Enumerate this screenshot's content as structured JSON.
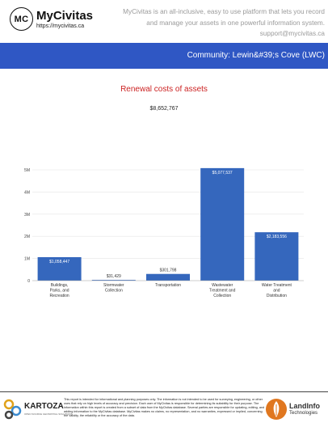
{
  "header": {
    "logo_text": "MC",
    "brand_name": "MyCivitas",
    "brand_url": "https://mycivitas.ca",
    "tagline": "MyCivitas is an all-inclusive, easy to use platform that lets you record and manage your assets in one powerful information system.",
    "support_email": "support@mycivitas.ca"
  },
  "banner": {
    "community": "Community: Lewin&#39;s Cove (LWC)"
  },
  "chart_data": {
    "type": "bar",
    "title": "Renewal costs of assets",
    "subtitle": "$8,652,767",
    "categories": [
      [
        "Buildings,",
        "Parks, and",
        "Recreation"
      ],
      [
        "Stormwater",
        "Collection"
      ],
      [
        "Transportation"
      ],
      [
        "Wastewater",
        "Treatment and",
        "Collection"
      ],
      [
        "Water Treatment",
        "and",
        "Distribution"
      ]
    ],
    "values": [
      1058447,
      31429,
      301798,
      5077537,
      2183556
    ],
    "value_labels": [
      "$1,058,447",
      "$31,429",
      "$301,798",
      "$5,077,537",
      "$2,183,556"
    ],
    "yticks": [
      0,
      1000000,
      2000000,
      3000000,
      4000000,
      5000000
    ],
    "ytick_labels": [
      "0",
      "1M",
      "2M",
      "3M",
      "4M",
      "5M"
    ],
    "ylim": [
      0,
      5000000
    ],
    "grid": true,
    "bar_color": "#3567bd",
    "label_color_inside": "#ffffff",
    "label_color_outside": "#333333"
  },
  "footer": {
    "kartoza_name": "KARTOZA",
    "kartoza_sub": "OPEN SOURCE GEOSPATIAL SOLUTIONS",
    "disclaimer": "This report is intended for informational and planning purposes only. The information is not intended to be used for surveying, engineering, or other uses that rely on high levels of accuracy and precision. Each user of MyCivitas is responsible for determining its suitability for their purpose. The information within this report is created from a subset of data from the MyCivitas database. Several parties are responsible for updating, editing, and adding information to the MyCivitas database. MyCivitas makes no claims, no representation, and no warranties, expressed or implied, concerning the validity, the reliability or the accuracy of the data.",
    "landinfo_name": "LandInfo",
    "landinfo_sub": "Technologies"
  }
}
